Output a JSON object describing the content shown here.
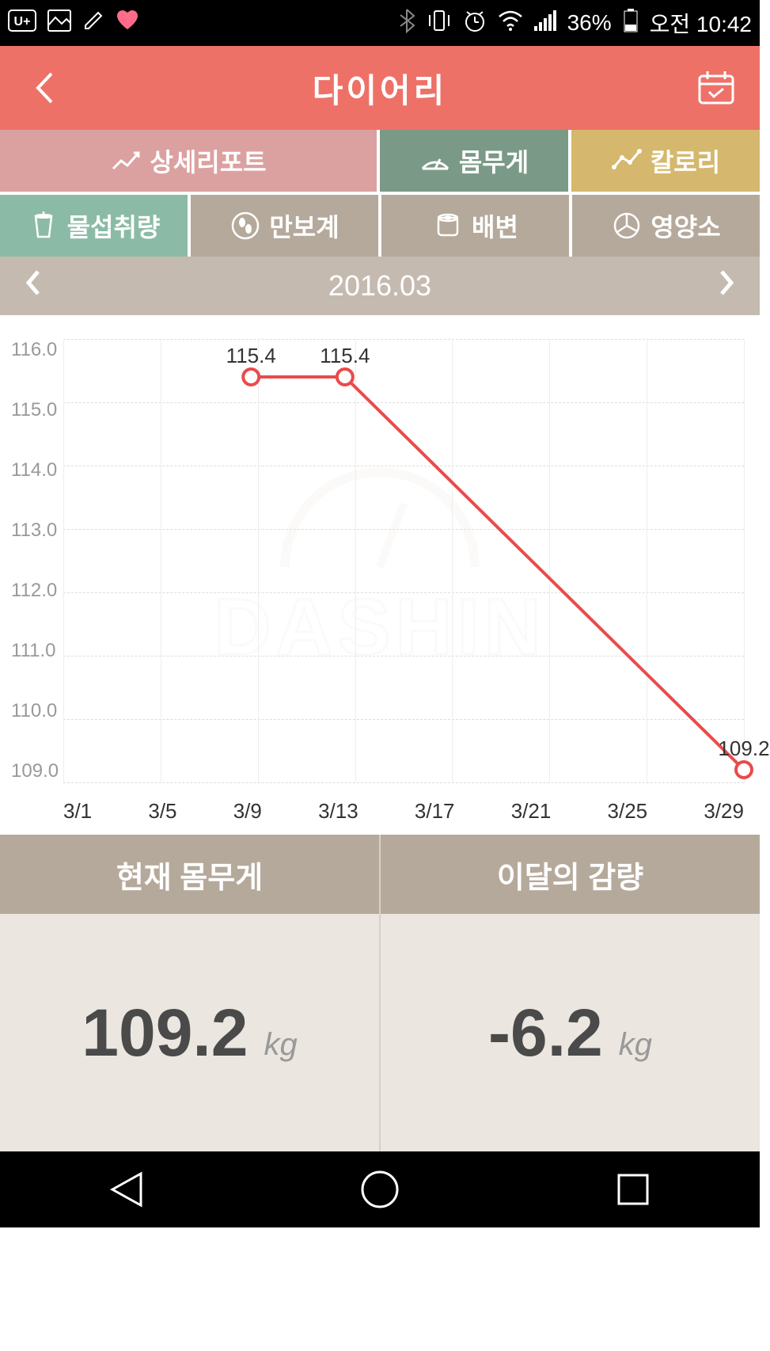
{
  "status": {
    "battery": "36%",
    "time": "오전 10:42"
  },
  "header": {
    "title": "다이어리"
  },
  "tabs": {
    "report": "상세리포트",
    "weight": "몸무게",
    "calorie": "칼로리",
    "water": "물섭취량",
    "pedometer": "만보계",
    "bowel": "배변",
    "nutrient": "영양소"
  },
  "dateNav": {
    "period": "2016.03"
  },
  "chart": {
    "type": "line",
    "ylim": [
      109.0,
      116.0
    ],
    "ytick_step": 1.0,
    "y_labels": [
      "116.0",
      "115.0",
      "114.0",
      "113.0",
      "112.0",
      "111.0",
      "110.0",
      "109.0"
    ],
    "x_labels": [
      "3/1",
      "3/5",
      "3/9",
      "3/13",
      "3/17",
      "3/21",
      "3/25",
      "3/29"
    ],
    "x_domain": [
      1,
      30
    ],
    "data": [
      {
        "x": 9,
        "y": 115.4,
        "label": "115.4"
      },
      {
        "x": 13,
        "y": 115.4,
        "label": "115.4"
      },
      {
        "x": 30,
        "y": 109.2,
        "label": "109.2"
      }
    ],
    "line_color": "#e94b4b",
    "line_width": 4,
    "marker_fill": "#ffffff",
    "marker_stroke": "#e94b4b",
    "marker_radius": 10,
    "grid_color": "#dddddd",
    "background": "#ffffff",
    "watermark_text": "DASHIN",
    "watermark_color": "#eae4da"
  },
  "stats": {
    "current_label": "현재 몸무게",
    "current_value": "109.2",
    "current_unit": "kg",
    "loss_label": "이달의 감량",
    "loss_value": "-6.2",
    "loss_unit": "kg"
  },
  "colors": {
    "header_bg": "#ee7168",
    "tab_report": "#dba1a0",
    "tab_weight": "#7a9a87",
    "tab_calorie": "#d5b86d",
    "tab_water": "#8bbba6",
    "tab_grey": "#b5a99b",
    "datenav_bg": "#c5bab0",
    "stat_body_bg": "#ebe6df"
  }
}
